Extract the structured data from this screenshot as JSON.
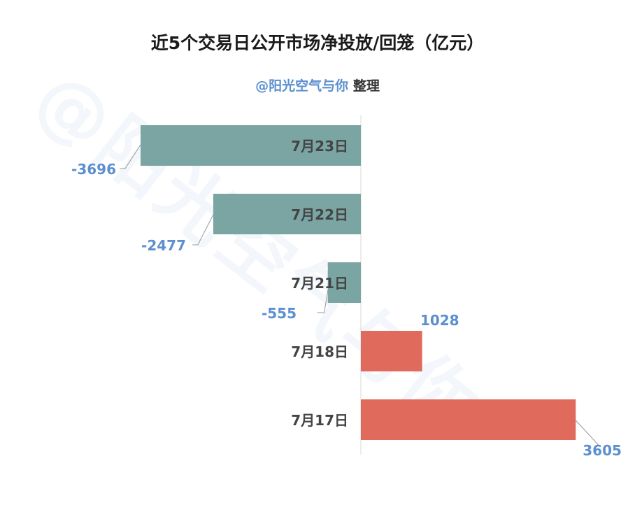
{
  "title": "近5个交易日公开市场净投放/回笼（亿元）",
  "subtitle": {
    "handle": "@阳光空气与你",
    "note": "整理"
  },
  "watermark": "@阳光空气与你",
  "colors": {
    "negative": "#7aa5a3",
    "positive": "#e06a5c",
    "value_label": "#5b8fcf",
    "category_label": "#444444",
    "leader": "#999999",
    "axis": "#d9d9d9"
  },
  "chart_data": {
    "type": "bar",
    "orientation": "horizontal",
    "title": "近5个交易日公开市场净投放/回笼（亿元）",
    "categories": [
      "7月23日",
      "7月22日",
      "7月21日",
      "7月18日",
      "7月17日"
    ],
    "values": [
      -3696,
      -2477,
      -555,
      1028,
      3605
    ],
    "xlim": [
      -3696,
      3605
    ],
    "grid": false,
    "legend": "none"
  }
}
